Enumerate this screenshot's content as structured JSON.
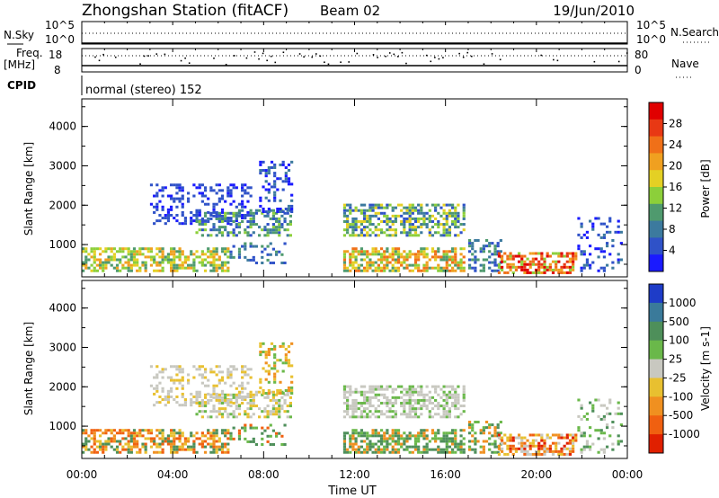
{
  "header": {
    "title": "Zhongshan Station (fitACF)",
    "beam": "Beam 02",
    "date": "19/Jun/2010"
  },
  "status_panels": {
    "nsky_label": "N.Sky",
    "nsky_ticks": [
      "10^5",
      "10^0"
    ],
    "nsearch_label": "N.Search",
    "nsearch_ticks": [
      "10^5",
      "10^0"
    ],
    "freq_label": "Freq.",
    "freq_unit": "[MHz]",
    "freq_ticks": [
      "18",
      "8"
    ],
    "nave_label": "Nave",
    "nave_ticks": [
      "80",
      "0"
    ],
    "cpid_label": "CPID",
    "cpid_value": "normal (stereo) 152"
  },
  "chart_data": [
    {
      "type": "heatmap",
      "name": "power",
      "ylabel": "Slant Range [km]",
      "yticks": [
        "1000",
        "2000",
        "3000",
        "4000"
      ],
      "ylim": [
        180,
        4700
      ],
      "xlim": [
        0,
        24
      ],
      "colorbar_label": "Power [dB]",
      "colorbar_ticks": [
        "4",
        "8",
        "12",
        "16",
        "20",
        "24",
        "28"
      ],
      "colors": [
        "#1a1aff",
        "#2f52c8",
        "#3c7a9e",
        "#4f9a6e",
        "#8ccf3a",
        "#e4d024",
        "#f0a020",
        "#f07018",
        "#e83814",
        "#e00000"
      ]
    },
    {
      "type": "heatmap",
      "name": "velocity",
      "ylabel": "Slant Range [km]",
      "yticks": [
        "1000",
        "2000",
        "3000",
        "4000"
      ],
      "ylim": [
        180,
        4700
      ],
      "xlim": [
        0,
        24
      ],
      "xlabel": "Time UT",
      "xticks": [
        "00:00",
        "04:00",
        "08:00",
        "12:00",
        "16:00",
        "20:00",
        "00:00"
      ],
      "colorbar_label": "Velocity [m s-1]",
      "colorbar_ticks": [
        "1000",
        "500",
        "100",
        "25",
        "-25",
        "-100",
        "-500",
        "-1000"
      ],
      "colors": [
        "#1e3cc8",
        "#3a7a9a",
        "#4e8f5a",
        "#6ab84a",
        "#c8c8c0",
        "#e8c030",
        "#f09020",
        "#f06010",
        "#e02000"
      ]
    }
  ]
}
